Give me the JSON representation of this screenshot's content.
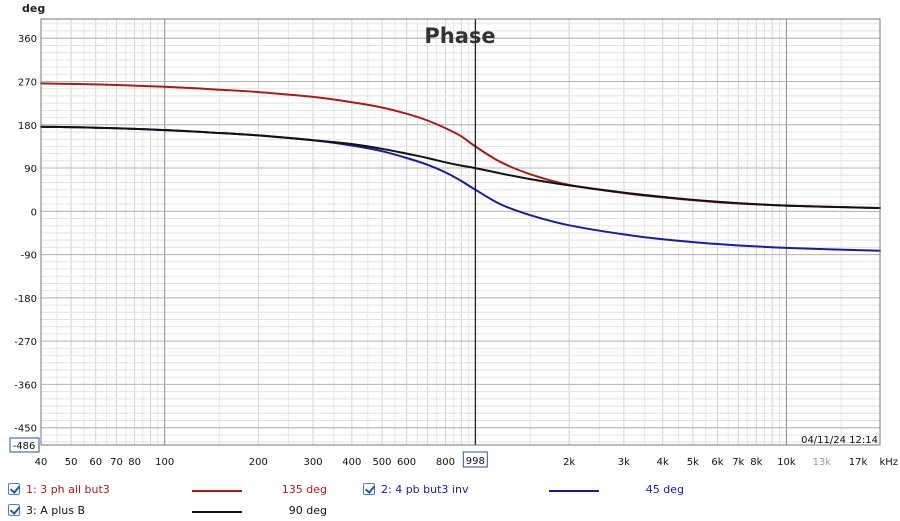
{
  "chart_data": {
    "type": "line",
    "title": "Phase",
    "ylabel": "deg",
    "x_unit_label": "kHz",
    "xscale": "log",
    "xlim": [
      40,
      20000
    ],
    "ylim": [
      -486,
      400
    ],
    "y_ticks": [
      360,
      270,
      180,
      90,
      0,
      -90,
      -180,
      -270,
      -360,
      -450
    ],
    "y_min_label": "-486",
    "x_ticks": [
      {
        "value": 40,
        "label": "40"
      },
      {
        "value": 50,
        "label": "50"
      },
      {
        "value": 60,
        "label": "60"
      },
      {
        "value": 70,
        "label": "70"
      },
      {
        "value": 80,
        "label": "80"
      },
      {
        "value": 100,
        "label": "100"
      },
      {
        "value": 200,
        "label": "200"
      },
      {
        "value": 300,
        "label": "300"
      },
      {
        "value": 400,
        "label": "400"
      },
      {
        "value": 500,
        "label": "500"
      },
      {
        "value": 600,
        "label": "600"
      },
      {
        "value": 800,
        "label": "800"
      },
      {
        "value": 2000,
        "label": "2k"
      },
      {
        "value": 3000,
        "label": "3k"
      },
      {
        "value": 4000,
        "label": "4k"
      },
      {
        "value": 5000,
        "label": "5k"
      },
      {
        "value": 6000,
        "label": "6k"
      },
      {
        "value": 7000,
        "label": "7k"
      },
      {
        "value": 8000,
        "label": "8k"
      },
      {
        "value": 10000,
        "label": "10k"
      },
      {
        "value": 13000,
        "label": "13k",
        "muted": true
      },
      {
        "value": 17000,
        "label": "17k"
      }
    ],
    "cursor": {
      "x": 998,
      "label": "998"
    },
    "timestamp": "04/11/24 12:14",
    "grid": true,
    "legend_position": "bottom",
    "series": [
      {
        "name": "1: 3 ph all but3",
        "color": "#b01818",
        "cursor_value": "135 deg",
        "x": [
          40,
          60,
          100,
          150,
          200,
          300,
          400,
          500,
          600,
          700,
          800,
          900,
          998,
          1200,
          1500,
          2000,
          3000,
          4000,
          6000,
          10000,
          20000
        ],
        "y": [
          266,
          264,
          259,
          253,
          248,
          238,
          227,
          216,
          203,
          189,
          173,
          156,
          135,
          103,
          77,
          55,
          38,
          29,
          19,
          12,
          7
        ]
      },
      {
        "name": "2: 4 pb but3 inv",
        "color": "#1a1aa8",
        "cursor_value": "45 deg",
        "x": [
          40,
          60,
          100,
          150,
          200,
          300,
          400,
          500,
          600,
          700,
          800,
          900,
          998,
          1200,
          1500,
          2000,
          3000,
          4000,
          6000,
          10000,
          20000
        ],
        "y": [
          176,
          174,
          169,
          163,
          158,
          148,
          137,
          125,
          111,
          97,
          81,
          63,
          45,
          15,
          -8,
          -29,
          -48,
          -58,
          -68,
          -76,
          -82
        ]
      },
      {
        "name": "3: A plus B",
        "color": "#111111",
        "cursor_value": "90 deg",
        "x": [
          40,
          60,
          100,
          150,
          200,
          300,
          400,
          500,
          600,
          700,
          800,
          900,
          998,
          1200,
          1500,
          2000,
          3000,
          4000,
          6000,
          10000,
          20000
        ],
        "y": [
          176,
          174,
          169,
          163,
          158,
          148,
          140,
          130,
          120,
          111,
          102,
          95,
          90,
          79,
          67,
          54,
          39,
          30,
          20,
          12,
          7
        ]
      }
    ]
  }
}
